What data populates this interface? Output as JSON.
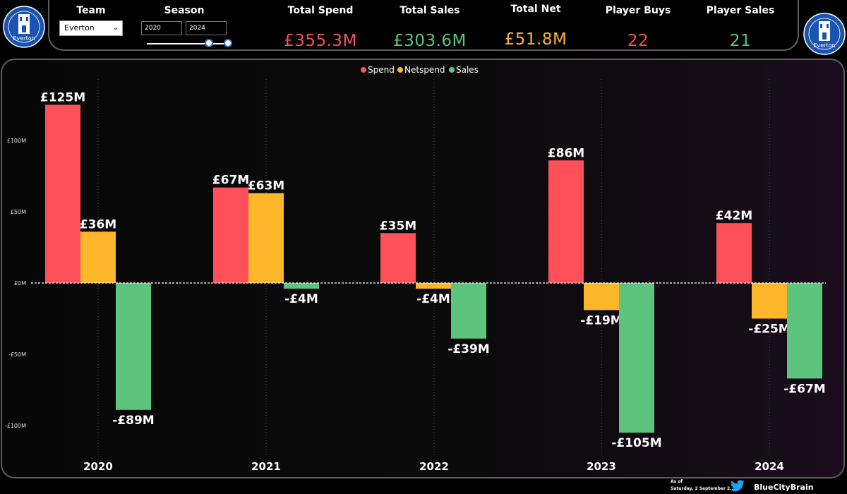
{
  "header": {
    "team_label": "Team",
    "team_value": "Everton",
    "season_label": "Season",
    "season_from": "2020",
    "season_to": "2024",
    "crest_text": "Everton",
    "kpis": [
      {
        "label": "Total Spend",
        "value": "£355.3M",
        "color": "#f0505a"
      },
      {
        "label": "Total Sales",
        "value": "£303.6M",
        "color": "#5cc480"
      },
      {
        "label": "Total Net",
        "value": "£51.8M",
        "color": "#fbb62d"
      },
      {
        "label": "Player Buys",
        "value": "22",
        "color": "#f0505a"
      },
      {
        "label": "Player Sales",
        "value": "21",
        "color": "#5cc480"
      }
    ]
  },
  "footer": {
    "asof_label": "As of",
    "asof_date": "Saturday, 2 September 2...",
    "handle": "BlueCityBrain"
  },
  "chart_data": {
    "type": "bar",
    "categories": [
      "2020",
      "2021",
      "2022",
      "2023",
      "2024"
    ],
    "series": [
      {
        "name": "Spend",
        "color": "#fd5058",
        "values": [
          125,
          67,
          35,
          86,
          42
        ],
        "labels": [
          "£125M",
          "£67M",
          "£35M",
          "£86M",
          "£42M"
        ]
      },
      {
        "name": "Netspend",
        "color": "#feb62a",
        "values": [
          36,
          63,
          -4,
          -19,
          -25
        ],
        "labels": [
          "£36M",
          "£63M",
          "-£4M",
          "-£19M",
          "-£25M"
        ]
      },
      {
        "name": "Sales",
        "color": "#5dc47e",
        "values": [
          -89,
          -4,
          -39,
          -105,
          -67
        ],
        "labels": [
          "-£89M",
          "-£4M",
          "-£39M",
          "-£105M",
          "-£67M"
        ]
      }
    ],
    "yticks": [
      100,
      50,
      0,
      -50,
      -100
    ],
    "ytick_labels": [
      "£100M",
      "£50M",
      "£0M",
      "-£50M",
      "-£100M"
    ],
    "ylim": [
      -130,
      130
    ],
    "legend_position": "top-center",
    "grid": "vertical dotted lines between categories"
  }
}
